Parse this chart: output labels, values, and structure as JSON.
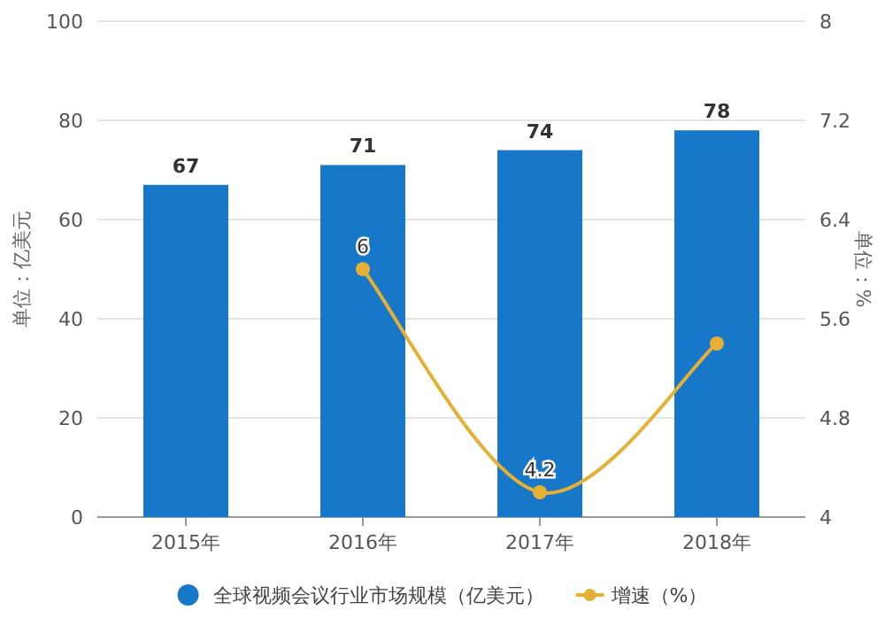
{
  "chart_data": {
    "type": "bar",
    "ylabel": "单位：亿美元",
    "y2label": "单位：%",
    "categories": [
      "2015年",
      "2016年",
      "2017年",
      "2018年"
    ],
    "series": [
      {
        "name": "全球视频会议行业市场规模（亿美元）",
        "color": "#1777c8",
        "values": [
          67,
          71,
          74,
          78
        ],
        "value_labels": [
          "67",
          "71",
          "74",
          "78"
        ]
      },
      {
        "name": "增速（%）",
        "type": "line",
        "axis": "y2",
        "color": "#e6b035",
        "values": [
          null,
          6,
          4.2,
          5.4
        ],
        "value_labels": [
          null,
          "6",
          "4.2",
          null
        ],
        "marker": "circle"
      }
    ],
    "ylim": [
      0,
      100
    ],
    "yticks": [
      0,
      20,
      40,
      60,
      80,
      100
    ],
    "y2lim": [
      4,
      8
    ],
    "y2ticks": [
      4,
      4.8,
      5.6,
      6.4,
      7.2,
      8
    ],
    "grid": "y",
    "legend": "bottom"
  }
}
